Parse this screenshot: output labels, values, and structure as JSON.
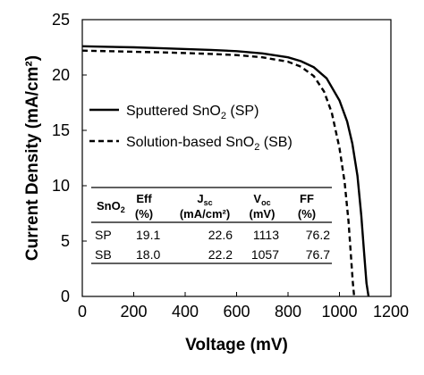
{
  "chart_data": {
    "type": "line",
    "xlabel": "Voltage (mV)",
    "ylabel": "Current Density (mA/cm²)",
    "xlim": [
      0,
      1200
    ],
    "ylim": [
      0,
      25
    ],
    "xticks": [
      0,
      200,
      400,
      600,
      800,
      1000,
      1200
    ],
    "yticks": [
      0,
      5,
      10,
      15,
      20,
      25
    ],
    "grid": false,
    "legend_position": "center-right",
    "series": [
      {
        "name": "Sputtered SnO₂ (SP)",
        "style": "solid",
        "points": [
          [
            0,
            22.6
          ],
          [
            100,
            22.55
          ],
          [
            200,
            22.5
          ],
          [
            300,
            22.43
          ],
          [
            400,
            22.35
          ],
          [
            500,
            22.27
          ],
          [
            600,
            22.15
          ],
          [
            700,
            21.95
          ],
          [
            800,
            21.6
          ],
          [
            850,
            21.25
          ],
          [
            900,
            20.7
          ],
          [
            950,
            19.7
          ],
          [
            1000,
            17.7
          ],
          [
            1030,
            15.8
          ],
          [
            1050,
            13.8
          ],
          [
            1070,
            10.9
          ],
          [
            1085,
            7.3
          ],
          [
            1095,
            4.2
          ],
          [
            1105,
            1.2
          ],
          [
            1113,
            0
          ]
        ]
      },
      {
        "name": "Solution-based SnO₂ (SB)",
        "style": "dashed",
        "points": [
          [
            0,
            22.2
          ],
          [
            100,
            22.15
          ],
          [
            200,
            22.1
          ],
          [
            300,
            22.05
          ],
          [
            400,
            21.98
          ],
          [
            500,
            21.9
          ],
          [
            600,
            21.8
          ],
          [
            700,
            21.6
          ],
          [
            800,
            21.2
          ],
          [
            850,
            20.75
          ],
          [
            900,
            19.9
          ],
          [
            940,
            18.5
          ],
          [
            970,
            16.6
          ],
          [
            1000,
            13.4
          ],
          [
            1020,
            10.3
          ],
          [
            1035,
            6.8
          ],
          [
            1045,
            3.6
          ],
          [
            1052,
            1.3
          ],
          [
            1057,
            0
          ]
        ]
      }
    ],
    "table": {
      "headers": [
        "SnO₂",
        "Eff (%)",
        "Jₛᴄ (mA/cm²)",
        "Vₒᴄ (mV)",
        "FF (%)"
      ],
      "header_lines": [
        [
          "SnO₂",
          ""
        ],
        [
          "Eff",
          "(%)"
        ],
        [
          "Jsc",
          "(mA/cm²)"
        ],
        [
          "Voc",
          "(mV)"
        ],
        [
          "FF",
          "(%)"
        ]
      ],
      "rows": [
        [
          "SP",
          "19.1",
          "22.6",
          "1113",
          "76.2"
        ],
        [
          "SB",
          "18.0",
          "22.2",
          "1057",
          "76.7"
        ]
      ]
    }
  }
}
